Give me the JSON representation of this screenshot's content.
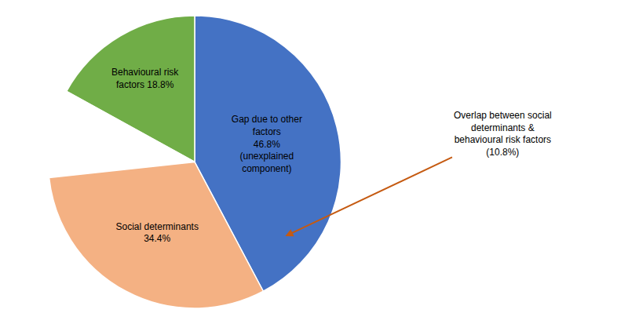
{
  "chart_data": {
    "type": "pie",
    "categories": [
      "Gap due to other\nfactors\n46.8%\n(unexplained\ncomponent)",
      "Behavioural risk\nfactors 18.8%",
      null,
      "Social determinants\n34.4%"
    ],
    "values": [
      46.8,
      18.8,
      10.8,
      34.4
    ],
    "colors": [
      "#4472C4",
      "#70AD47",
      "#F0C090",
      "#F4B183"
    ],
    "annotation": {
      "text": "Overlap between social\ndeterminants &\nbehavioural risk factors\n(10.8%)",
      "color": "#C55A11"
    }
  }
}
